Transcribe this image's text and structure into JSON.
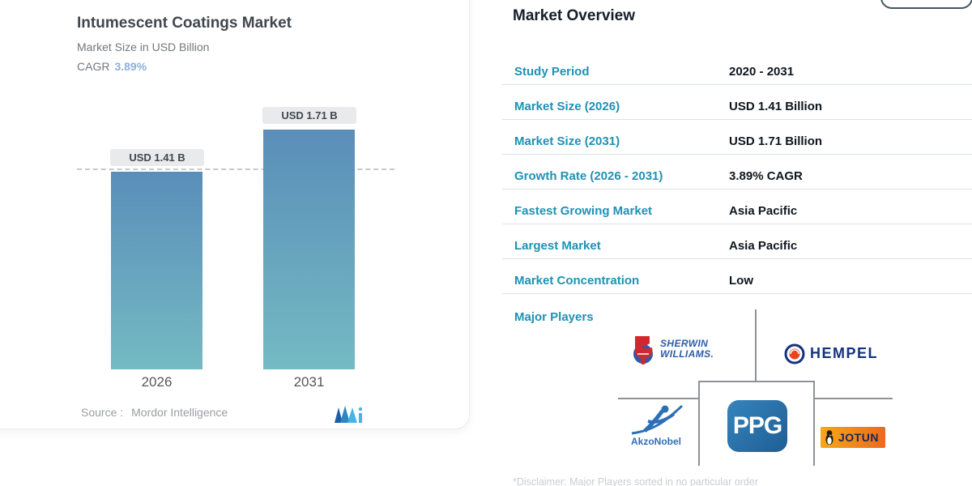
{
  "chart_card": {
    "title": "Intumescent Coatings Market",
    "subtitle": "Market Size in USD Billion",
    "cagr_label": "CAGR",
    "cagr_value": "3.89%",
    "source_label": "Source :",
    "source_value": "Mordor Intelligence"
  },
  "chart_data": {
    "type": "bar",
    "title": "Intumescent Coatings Market",
    "subtitle": "Market Size in USD Billion",
    "cagr_pct": 3.89,
    "categories": [
      "2026",
      "2031"
    ],
    "values": [
      1.41,
      1.71
    ],
    "unit": "USD Billion",
    "bar_value_labels": [
      "USD 1.41 B",
      "USD 1.71 B"
    ],
    "ylim": [
      0,
      1.9
    ],
    "grid": "single dashed reference line at first bar value",
    "legend": "none",
    "bar_color_top": "#5a8eb9",
    "bar_color_bottom": "#74bac3"
  },
  "overview": {
    "heading": "Market Overview",
    "rows": [
      {
        "label": "Study Period",
        "value": "2020 - 2031"
      },
      {
        "label": "Market Size (2026)",
        "value": "USD 1.41 Billion"
      },
      {
        "label": "Market Size (2031)",
        "value": "USD 1.71 Billion"
      },
      {
        "label": "Growth Rate (2026 - 2031)",
        "value": "3.89% CAGR"
      },
      {
        "label": "Fastest Growing Market",
        "value": "Asia Pacific"
      },
      {
        "label": "Largest Market",
        "value": "Asia Pacific"
      },
      {
        "label": "Market Concentration",
        "value": "Low"
      }
    ],
    "major_players_label": "Major Players",
    "players": {
      "sherwin_williams": {
        "name": "Sherwin Williams",
        "line1": "SHERWIN",
        "line2": "WILLIAMS."
      },
      "hempel": {
        "name": "HEMPEL"
      },
      "akzonobel": {
        "name": "AkzoNobel"
      },
      "ppg": {
        "name": "PPG"
      },
      "jotun": {
        "name": "JOTUN"
      }
    },
    "disclaimer": "*Disclaimer: Major Players sorted in no particular order"
  },
  "icons": {
    "mordor-intelligence-logo-icon": "stylized two-tone blue M mark",
    "sherwin-williams-can-icon": "red paint can pouring over blue globe",
    "hempel-ring-icon": "blue ring with orange-red core",
    "akzonobel-figure-icon": "blue reaching human swoosh",
    "jotun-penguin-icon": "small penguin silhouette"
  },
  "colors": {
    "row_label_teal": "#1d92b4",
    "row_value_dark": "#0e161e",
    "cagr_blue": "#8fb0d8",
    "bar_top": "#5a8eb9",
    "bar_bottom": "#74bac3",
    "separator": "#dde1e4",
    "connector_gray": "#8d9398",
    "jotun_orange": "#ec6a1c",
    "ppg_blue": "#2878ae",
    "hempel_navy": "#14337f",
    "sherwin_blue": "#2b5ca8",
    "akzo_blue": "#2d6fb7"
  }
}
